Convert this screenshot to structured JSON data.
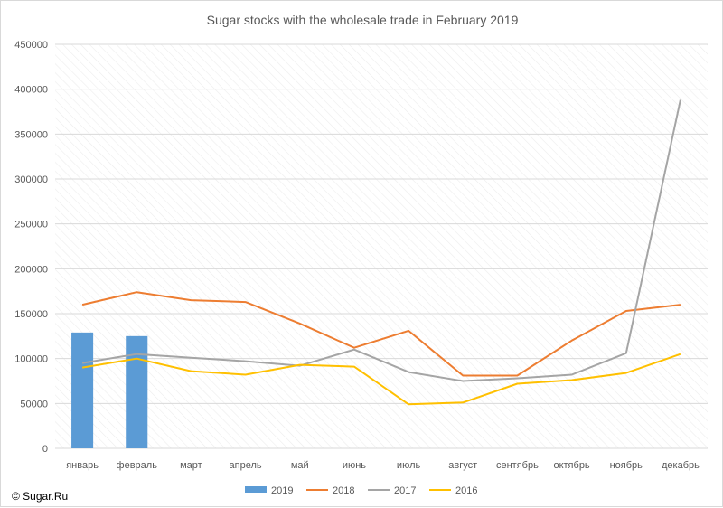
{
  "chart_data": {
    "type": "bar",
    "title": "Sugar stocks with the wholesale trade in February 2019",
    "xlabel": "",
    "ylabel": "",
    "categories": [
      "январь",
      "февраль",
      "март",
      "апрель",
      "май",
      "июнь",
      "июль",
      "август",
      "сентябрь",
      "октябрь",
      "ноябрь",
      "декабрь"
    ],
    "ylim": [
      0,
      450000
    ],
    "y_ticks": [
      "0",
      "50000",
      "100000",
      "150000",
      "200000",
      "250000",
      "300000",
      "350000",
      "400000",
      "450000"
    ],
    "grid": "horizontal",
    "legend_position": "bottom",
    "series": [
      {
        "name": "2019",
        "type": "bar",
        "color": "#5b9bd5",
        "values": [
          129000,
          125000,
          null,
          null,
          null,
          null,
          null,
          null,
          null,
          null,
          null,
          null
        ]
      },
      {
        "name": "2018",
        "type": "line",
        "color": "#ed7d31",
        "values": [
          160000,
          174000,
          165000,
          163000,
          139000,
          112000,
          131000,
          81000,
          81000,
          120000,
          153000,
          160000
        ]
      },
      {
        "name": "2017",
        "type": "line",
        "color": "#a5a5a5",
        "values": [
          95000,
          105000,
          101000,
          97000,
          92000,
          110000,
          85000,
          75000,
          78000,
          82000,
          106000,
          388000
        ]
      },
      {
        "name": "2016",
        "type": "line",
        "color": "#ffc000",
        "values": [
          90000,
          100000,
          86000,
          82000,
          93000,
          91000,
          49000,
          51000,
          72000,
          76000,
          84000,
          105000
        ]
      }
    ]
  },
  "copyright": "© Sugar.Ru"
}
